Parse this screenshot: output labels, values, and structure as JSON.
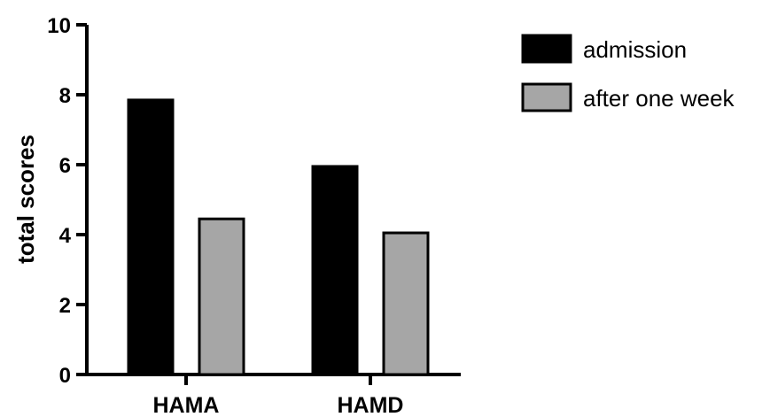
{
  "chart_data": {
    "type": "bar",
    "ylabel": "total scores",
    "xlabel": "",
    "ylim": [
      0,
      10
    ],
    "yticks": [
      "0",
      "2",
      "4",
      "6",
      "8",
      "10"
    ],
    "categories": [
      "HAMA",
      "HAMD"
    ],
    "series": [
      {
        "name": "admission",
        "values": [
          7.85,
          5.95
        ],
        "color": "#000000"
      },
      {
        "name": "after one week",
        "values": [
          4.45,
          4.05
        ],
        "color": "#a6a6a6"
      }
    ],
    "legend_position": "top-right",
    "grid": false
  }
}
